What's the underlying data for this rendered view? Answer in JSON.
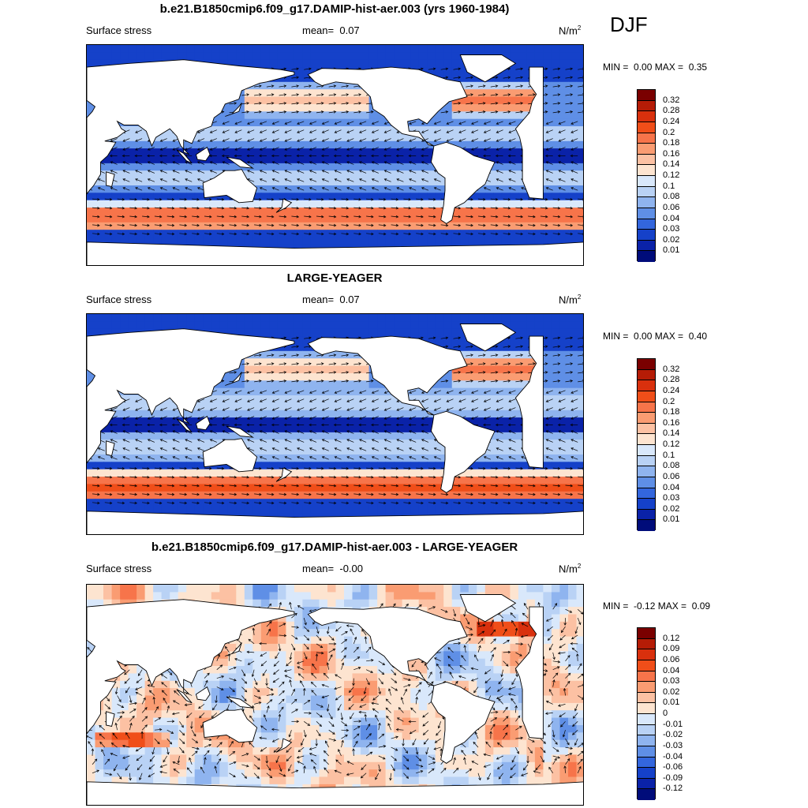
{
  "season": "DJF",
  "panels": [
    {
      "title": "b.e21.B1850cmip6.f09_g17.DAMIP-hist-aer.003 (yrs 1960-1984)",
      "left_label": "Surface stress",
      "mean_label": "mean=",
      "mean_value": "0.07",
      "units_base": "N/m",
      "units_exp": "2",
      "min_label": "MIN =",
      "min_value": "0.00",
      "max_label": "MAX =",
      "max_value": "0.35",
      "colorbar_ticks": [
        "0.32",
        "0.28",
        "0.24",
        "0.2",
        "0.18",
        "0.16",
        "0.14",
        "0.12",
        "0.1",
        "0.08",
        "0.06",
        "0.04",
        "0.03",
        "0.02",
        "0.01"
      ]
    },
    {
      "title": "LARGE-YEAGER",
      "left_label": "Surface stress",
      "mean_label": "mean=",
      "mean_value": "0.07",
      "units_base": "N/m",
      "units_exp": "2",
      "min_label": "MIN =",
      "min_value": "0.00",
      "max_label": "MAX =",
      "max_value": "0.40",
      "colorbar_ticks": [
        "0.32",
        "0.28",
        "0.24",
        "0.2",
        "0.18",
        "0.16",
        "0.14",
        "0.12",
        "0.1",
        "0.08",
        "0.06",
        "0.04",
        "0.03",
        "0.02",
        "0.01"
      ]
    },
    {
      "title": "b.e21.B1850cmip6.f09_g17.DAMIP-hist-aer.003 - LARGE-YEAGER",
      "left_label": "Surface stress",
      "mean_label": "mean=",
      "mean_value": "-0.00",
      "units_base": "N/m",
      "units_exp": "2",
      "min_label": "MIN =",
      "min_value": "-0.12",
      "max_label": "MAX =",
      "max_value": "0.09",
      "colorbar_ticks": [
        "0.12",
        "0.09",
        "0.06",
        "0.04",
        "0.03",
        "0.02",
        "0.01",
        "0",
        "-0.01",
        "-0.02",
        "-0.03",
        "-0.04",
        "-0.06",
        "-0.09",
        "-0.12"
      ]
    }
  ],
  "colors": {
    "scale": [
      "#7a0000",
      "#b51c06",
      "#d9300d",
      "#f04e19",
      "#f7744a",
      "#fa9c72",
      "#fcc1a3",
      "#fde4d0",
      "#d9e8fb",
      "#b9d2f5",
      "#8fb4ef",
      "#5f8fe6",
      "#3366dd",
      "#1541c9",
      "#0a22a8",
      "#000c7a"
    ],
    "land": "#ffffff",
    "coast": "#000000",
    "arrow": "#000000"
  },
  "chart_data": [
    {
      "type": "heatmap",
      "description_field": "surface wind stress magnitude with vectors",
      "title": "b.e21.B1850cmip6.f09_g17.DAMIP-hist-aer.003 (yrs 1960-1984)",
      "variable": "Surface stress",
      "units": "N/m2",
      "mean": 0.07,
      "min": 0.0,
      "max": 0.35,
      "levels": [
        0.01,
        0.02,
        0.03,
        0.04,
        0.06,
        0.08,
        0.1,
        0.12,
        0.14,
        0.16,
        0.18,
        0.2,
        0.24,
        0.28,
        0.32
      ]
    },
    {
      "type": "heatmap",
      "title": "LARGE-YEAGER",
      "variable": "Surface stress",
      "units": "N/m2",
      "mean": 0.07,
      "min": 0.0,
      "max": 0.4,
      "levels": [
        0.01,
        0.02,
        0.03,
        0.04,
        0.06,
        0.08,
        0.1,
        0.12,
        0.14,
        0.16,
        0.18,
        0.2,
        0.24,
        0.28,
        0.32
      ]
    },
    {
      "type": "heatmap",
      "title": "b.e21.B1850cmip6.f09_g17.DAMIP-hist-aer.003 - LARGE-YEAGER",
      "variable": "Surface stress",
      "units": "N/m2",
      "mean": -0.0,
      "min": -0.12,
      "max": 0.09,
      "levels": [
        -0.12,
        -0.09,
        -0.06,
        -0.04,
        -0.03,
        -0.02,
        -0.01,
        0,
        0.01,
        0.02,
        0.03,
        0.04,
        0.06,
        0.09,
        0.12
      ]
    }
  ]
}
